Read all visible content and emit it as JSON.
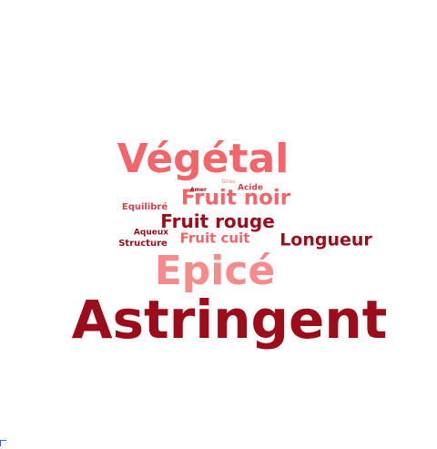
{
  "colors": {
    "dark_red": "#9b0d1b",
    "red": "#d6414c",
    "light_red": "#f0666a",
    "pink": "#f58b8b",
    "pale": "#f3a9a9"
  },
  "words": [
    {
      "id": "astringent",
      "text": "Astringent",
      "weight": 100,
      "color": "#9b0d1b"
    },
    {
      "id": "epice",
      "text": "Epicé",
      "weight": 72,
      "color": "#f58b8b"
    },
    {
      "id": "vegetal",
      "text": "Végétal",
      "weight": 66,
      "color": "#f0666a"
    },
    {
      "id": "fruit-noir",
      "text": "Fruit noir",
      "weight": 40,
      "color": "#f0666a"
    },
    {
      "id": "fruit-rouge",
      "text": "Fruit rouge",
      "weight": 34,
      "color": "#9b0d1b"
    },
    {
      "id": "longueur",
      "text": "Longueur",
      "weight": 30,
      "color": "#9b0d1b"
    },
    {
      "id": "fruit-cuit",
      "text": "Fruit cuit",
      "weight": 24,
      "color": "#f0666a"
    },
    {
      "id": "equilibre",
      "text": "Equilibré",
      "weight": 14,
      "color": "#d6414c"
    },
    {
      "id": "structure",
      "text": "Structure",
      "weight": 14,
      "color": "#9b0d1b"
    },
    {
      "id": "aqueux",
      "text": "Aqueux",
      "weight": 12,
      "color": "#9b0d1b"
    },
    {
      "id": "acide",
      "text": "Acide",
      "weight": 12,
      "color": "#d6414c"
    },
    {
      "id": "amer",
      "text": "Amer",
      "weight": 7,
      "color": "#9b0d1b"
    },
    {
      "id": "gras",
      "text": "Gras",
      "weight": 6,
      "color": "#f3a9a9"
    }
  ]
}
